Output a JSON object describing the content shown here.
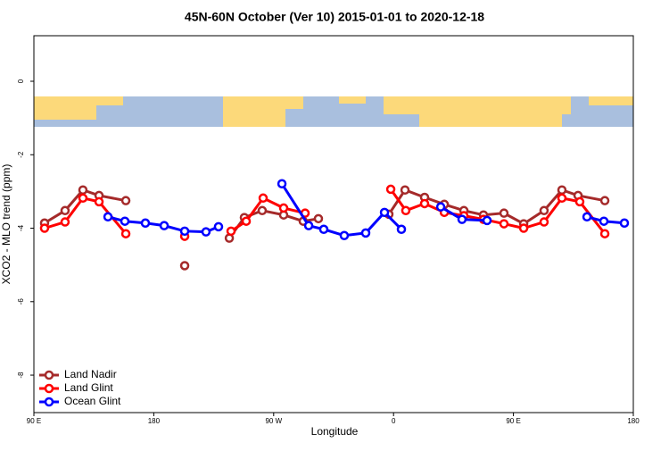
{
  "chart_data": {
    "type": "line",
    "title": "45N-60N October (Ver 10)   2015-01-01 to 2020-12-18",
    "x_label": "Longitude",
    "y_label": "XCO2 - MLO trend (ppm)",
    "xlim": [
      90,
      540
    ],
    "ylim": [
      -9.02,
      1.24
    ],
    "xticks": [
      {
        "value": 90,
        "label": "90 E"
      },
      180,
      {
        "value": 270,
        "label": "90 W"
      },
      {
        "value": 360,
        "label": "0"
      },
      {
        "value": 450,
        "label": "90 E"
      },
      {
        "value": 540,
        "label": "180"
      }
    ],
    "yticks": [
      0,
      -2,
      -4,
      -6,
      -8
    ],
    "legend": "bottom-left",
    "series": [
      {
        "name": "Land Nadir",
        "color": "#a52a2a",
        "x": [
          98.0,
          113.4,
          126.8,
          138.9,
          159.0,
          null,
          203.2,
          null,
          236.7,
          248.0,
          261.4,
          277.5,
          292.2,
          303.6,
          null,
          356.5,
          368.6,
          383.3,
          398.1,
          412.8,
          427.5,
          442.9,
          457.7,
          473.0,
          486.4,
          498.5,
          518.6
        ],
        "values": [
          -3.86,
          -3.52,
          -2.96,
          -3.11,
          -3.25,
          null,
          -5.02,
          null,
          -4.27,
          -3.71,
          -3.52,
          -3.64,
          -3.81,
          -3.74,
          null,
          -3.62,
          -2.96,
          -3.16,
          -3.35,
          -3.52,
          -3.64,
          -3.59,
          -3.88,
          -3.52,
          -2.96,
          -3.11,
          -3.25
        ]
      },
      {
        "name": "Land Glint",
        "color": "#ff0000",
        "x": [
          98.0,
          113.4,
          126.8,
          138.9,
          159.0,
          null,
          203.2,
          null,
          238.0,
          249.4,
          262.1,
          277.5,
          293.6,
          null,
          357.9,
          369.2,
          383.3,
          398.1,
          412.8,
          427.5,
          442.9,
          457.7,
          473.0,
          486.4,
          499.8,
          518.6
        ],
        "values": [
          -4.0,
          -3.83,
          -3.18,
          -3.28,
          -4.15,
          null,
          -4.22,
          null,
          -4.08,
          -3.81,
          -3.18,
          -3.45,
          -3.59,
          null,
          -2.94,
          -3.52,
          -3.33,
          -3.57,
          -3.66,
          -3.76,
          -3.88,
          -4.0,
          -3.83,
          -3.18,
          -3.28,
          -4.15
        ]
      },
      {
        "name": "Ocean Glint",
        "color": "#0000ff",
        "x": [
          145.6,
          158.3,
          173.7,
          187.8,
          203.2,
          219.2,
          228.6,
          null,
          276.2,
          296.3,
          307.6,
          323.0,
          339.1,
          353.2,
          365.9,
          null,
          395.4,
          411.4,
          430.2,
          null,
          505.2,
          517.9,
          533.3
        ],
        "values": [
          -3.69,
          -3.81,
          -3.86,
          -3.93,
          -4.08,
          -4.1,
          -3.96,
          null,
          -2.79,
          -3.93,
          -4.03,
          -4.2,
          -4.13,
          -3.57,
          -4.03,
          null,
          -3.42,
          -3.76,
          -3.79,
          null,
          -3.69,
          -3.81,
          -3.86
        ]
      }
    ]
  }
}
